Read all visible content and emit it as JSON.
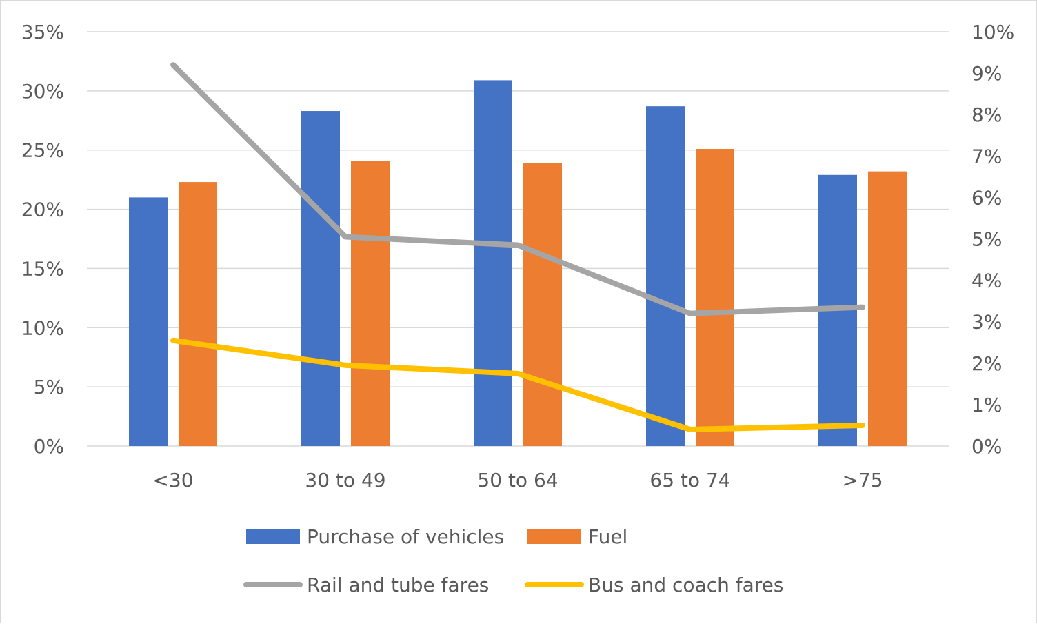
{
  "colors": {
    "purchase": "#4472C4",
    "fuel": "#ED7D31",
    "rail": "#A5A5A5",
    "bus": "#FFC000",
    "grid": "#D9D9D9",
    "text": "#595959"
  },
  "chart_data": {
    "type": "bar",
    "title": "",
    "xlabel": "",
    "ylabel": "",
    "categories": [
      "<30",
      "30 to 49",
      "50 to 64",
      "65 to 74",
      ">75"
    ],
    "ylim": [
      0,
      35
    ],
    "y2lim": [
      0,
      10
    ],
    "y_ticks": [
      "0%",
      "5%",
      "10%",
      "15%",
      "20%",
      "25%",
      "30%",
      "35%"
    ],
    "y2_ticks": [
      "0%",
      "1%",
      "2%",
      "3%",
      "4%",
      "5%",
      "6%",
      "7%",
      "8%",
      "9%",
      "10%"
    ],
    "grid": true,
    "legend_position": "bottom",
    "series": [
      {
        "name": "Purchase of vehicles",
        "kind": "bar",
        "axis": "left",
        "color": "#4472C4",
        "values": [
          21.0,
          28.3,
          30.9,
          28.7,
          22.9
        ]
      },
      {
        "name": "Fuel",
        "kind": "bar",
        "axis": "left",
        "color": "#ED7D31",
        "values": [
          22.3,
          24.1,
          23.9,
          25.1,
          23.2
        ]
      },
      {
        "name": "Rail and tube fares",
        "kind": "line",
        "axis": "right",
        "color": "#A5A5A5",
        "values": [
          9.2,
          5.05,
          4.85,
          3.2,
          3.35
        ]
      },
      {
        "name": "Bus and coach fares",
        "kind": "line",
        "axis": "right",
        "color": "#FFC000",
        "values": [
          2.55,
          1.95,
          1.75,
          0.4,
          0.5
        ]
      }
    ]
  }
}
